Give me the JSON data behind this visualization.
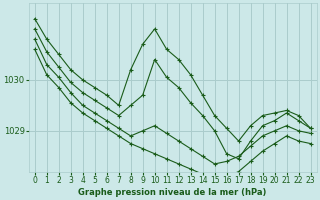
{
  "bg_color": "#cce8e8",
  "grid_color": "#aacccc",
  "line_color": "#1a5c1a",
  "marker_color": "#1a5c1a",
  "xlabel": "Graphe pression niveau de la mer (hPa)",
  "xlabel_color": "#1a5c1a",
  "yticks": [
    1029,
    1030
  ],
  "xlim": [
    -0.5,
    23.5
  ],
  "ylim": [
    1028.2,
    1031.5
  ],
  "xticks": [
    0,
    1,
    2,
    3,
    4,
    5,
    6,
    7,
    8,
    9,
    10,
    11,
    12,
    13,
    14,
    15,
    16,
    17,
    18,
    19,
    20,
    21,
    22,
    23
  ],
  "series": [
    [
      1031.2,
      1030.8,
      1030.5,
      1030.2,
      1030.0,
      1029.85,
      1029.7,
      1029.5,
      1030.2,
      1030.7,
      1031.0,
      1030.6,
      1030.4,
      1030.1,
      1029.7,
      1029.3,
      1029.05,
      1028.8,
      1029.1,
      1029.3,
      1029.35,
      1029.4,
      1029.3,
      1029.05
    ],
    [
      1031.0,
      1030.55,
      1030.25,
      1029.95,
      1029.75,
      1029.6,
      1029.45,
      1029.3,
      1029.5,
      1029.7,
      1030.4,
      1030.05,
      1029.85,
      1029.55,
      1029.3,
      1029.0,
      1028.55,
      1028.45,
      1028.8,
      1029.1,
      1029.2,
      1029.35,
      1029.2,
      1029.05
    ],
    [
      1030.8,
      1030.3,
      1030.05,
      1029.75,
      1029.5,
      1029.35,
      1029.2,
      1029.05,
      1028.9,
      1029.0,
      1029.1,
      1028.95,
      1028.8,
      1028.65,
      1028.5,
      1028.35,
      1028.4,
      1028.5,
      1028.7,
      1028.9,
      1029.0,
      1029.1,
      1029.0,
      1028.95
    ],
    [
      1030.6,
      1030.1,
      1029.85,
      1029.55,
      1029.35,
      1029.2,
      1029.05,
      1028.9,
      1028.75,
      1028.65,
      1028.55,
      1028.45,
      1028.35,
      1028.25,
      1028.15,
      1028.05,
      1028.1,
      1028.2,
      1028.4,
      1028.6,
      1028.75,
      1028.9,
      1028.8,
      1028.75
    ]
  ]
}
